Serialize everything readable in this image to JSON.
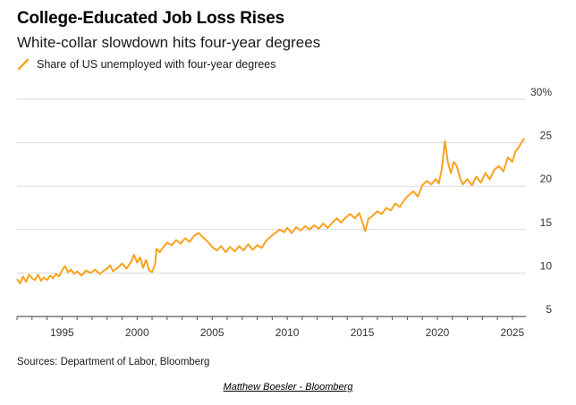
{
  "header": {
    "title": "College-Educated Job Loss Rises",
    "subtitle": "White-collar slowdown hits four-year degrees"
  },
  "legend": {
    "series_label": "Share of US unemployed with four-year degrees",
    "color": "#F8A21E"
  },
  "footer": {
    "source": "Sources: Department of Labor, Bloomberg",
    "credit": "Matthew Boesler - Bloomberg"
  },
  "chart_data": {
    "type": "line",
    "title": "College-Educated Job Loss Rises",
    "subtitle": "White-collar slowdown hits four-year degrees",
    "xlabel": "",
    "ylabel": "",
    "xlim": [
      1992,
      2025.9
    ],
    "ylim": [
      5,
      30
    ],
    "x_ticks": [
      1995,
      2000,
      2005,
      2010,
      2015,
      2020,
      2025
    ],
    "y_ticks": [
      {
        "value": 5,
        "label": "5"
      },
      {
        "value": 10,
        "label": "10"
      },
      {
        "value": 15,
        "label": "15"
      },
      {
        "value": 20,
        "label": "20"
      },
      {
        "value": 25,
        "label": "25"
      },
      {
        "value": 30,
        "label": "30%"
      }
    ],
    "grid": true,
    "legend_position": "top-left",
    "series": [
      {
        "name": "Share of US unemployed with four-year degrees",
        "color": "#F8A21E",
        "points": [
          [
            1992.0,
            9.3
          ],
          [
            1992.2,
            8.8
          ],
          [
            1992.4,
            9.6
          ],
          [
            1992.6,
            9.0
          ],
          [
            1992.8,
            9.8
          ],
          [
            1993.0,
            9.4
          ],
          [
            1993.2,
            9.2
          ],
          [
            1993.4,
            9.8
          ],
          [
            1993.6,
            9.1
          ],
          [
            1993.8,
            9.5
          ],
          [
            1994.0,
            9.2
          ],
          [
            1994.2,
            9.7
          ],
          [
            1994.4,
            9.4
          ],
          [
            1994.6,
            9.9
          ],
          [
            1994.8,
            9.6
          ],
          [
            1995.0,
            10.3
          ],
          [
            1995.2,
            10.8
          ],
          [
            1995.4,
            10.1
          ],
          [
            1995.6,
            10.4
          ],
          [
            1995.8,
            9.9
          ],
          [
            1996.0,
            10.2
          ],
          [
            1996.3,
            9.7
          ],
          [
            1996.6,
            10.3
          ],
          [
            1996.9,
            10.0
          ],
          [
            1997.2,
            10.4
          ],
          [
            1997.5,
            9.9
          ],
          [
            1997.8,
            10.3
          ],
          [
            1998.0,
            10.5
          ],
          [
            1998.2,
            10.9
          ],
          [
            1998.4,
            10.2
          ],
          [
            1998.7,
            10.6
          ],
          [
            1999.0,
            11.1
          ],
          [
            1999.3,
            10.5
          ],
          [
            1999.6,
            11.3
          ],
          [
            1999.8,
            12.1
          ],
          [
            2000.0,
            11.2
          ],
          [
            2000.2,
            11.8
          ],
          [
            2000.4,
            10.6
          ],
          [
            2000.6,
            11.5
          ],
          [
            2000.8,
            10.3
          ],
          [
            2001.0,
            10.1
          ],
          [
            2001.2,
            11.0
          ],
          [
            2001.3,
            12.8
          ],
          [
            2001.5,
            12.4
          ],
          [
            2001.8,
            13.1
          ],
          [
            2002.0,
            13.5
          ],
          [
            2002.3,
            13.2
          ],
          [
            2002.6,
            13.8
          ],
          [
            2002.9,
            13.4
          ],
          [
            2003.2,
            14.0
          ],
          [
            2003.5,
            13.6
          ],
          [
            2003.8,
            14.3
          ],
          [
            2004.1,
            14.6
          ],
          [
            2004.4,
            14.1
          ],
          [
            2004.7,
            13.6
          ],
          [
            2005.0,
            13.0
          ],
          [
            2005.3,
            12.6
          ],
          [
            2005.6,
            13.1
          ],
          [
            2005.9,
            12.4
          ],
          [
            2006.2,
            13.0
          ],
          [
            2006.5,
            12.5
          ],
          [
            2006.8,
            13.1
          ],
          [
            2007.1,
            12.6
          ],
          [
            2007.4,
            13.3
          ],
          [
            2007.7,
            12.7
          ],
          [
            2008.0,
            13.2
          ],
          [
            2008.3,
            12.9
          ],
          [
            2008.6,
            13.7
          ],
          [
            2008.9,
            14.2
          ],
          [
            2009.2,
            14.6
          ],
          [
            2009.5,
            15.0
          ],
          [
            2009.8,
            14.7
          ],
          [
            2010.0,
            15.2
          ],
          [
            2010.3,
            14.6
          ],
          [
            2010.6,
            15.3
          ],
          [
            2010.9,
            14.9
          ],
          [
            2011.2,
            15.4
          ],
          [
            2011.5,
            15.0
          ],
          [
            2011.8,
            15.5
          ],
          [
            2012.1,
            15.1
          ],
          [
            2012.4,
            15.7
          ],
          [
            2012.7,
            15.2
          ],
          [
            2013.0,
            15.8
          ],
          [
            2013.3,
            16.3
          ],
          [
            2013.6,
            15.8
          ],
          [
            2013.9,
            16.4
          ],
          [
            2014.2,
            16.8
          ],
          [
            2014.5,
            16.3
          ],
          [
            2014.8,
            16.9
          ],
          [
            2015.0,
            15.9
          ],
          [
            2015.2,
            14.8
          ],
          [
            2015.4,
            16.2
          ],
          [
            2015.7,
            16.6
          ],
          [
            2016.0,
            17.1
          ],
          [
            2016.3,
            16.8
          ],
          [
            2016.6,
            17.5
          ],
          [
            2016.9,
            17.2
          ],
          [
            2017.2,
            18.0
          ],
          [
            2017.5,
            17.6
          ],
          [
            2017.8,
            18.4
          ],
          [
            2018.1,
            19.0
          ],
          [
            2018.4,
            19.4
          ],
          [
            2018.7,
            18.8
          ],
          [
            2019.0,
            20.1
          ],
          [
            2019.3,
            20.6
          ],
          [
            2019.6,
            20.2
          ],
          [
            2019.9,
            20.8
          ],
          [
            2020.1,
            20.3
          ],
          [
            2020.3,
            22.0
          ],
          [
            2020.5,
            25.2
          ],
          [
            2020.7,
            22.8
          ],
          [
            2020.9,
            21.5
          ],
          [
            2021.1,
            22.8
          ],
          [
            2021.3,
            22.3
          ],
          [
            2021.5,
            21.0
          ],
          [
            2021.7,
            20.2
          ],
          [
            2022.0,
            20.8
          ],
          [
            2022.3,
            20.1
          ],
          [
            2022.6,
            21.1
          ],
          [
            2022.9,
            20.4
          ],
          [
            2023.2,
            21.5
          ],
          [
            2023.5,
            20.8
          ],
          [
            2023.8,
            21.9
          ],
          [
            2024.1,
            22.3
          ],
          [
            2024.4,
            21.7
          ],
          [
            2024.7,
            23.3
          ],
          [
            2025.0,
            22.8
          ],
          [
            2025.2,
            24.0
          ],
          [
            2025.4,
            24.4
          ],
          [
            2025.6,
            25.0
          ],
          [
            2025.8,
            25.5
          ]
        ]
      }
    ]
  }
}
